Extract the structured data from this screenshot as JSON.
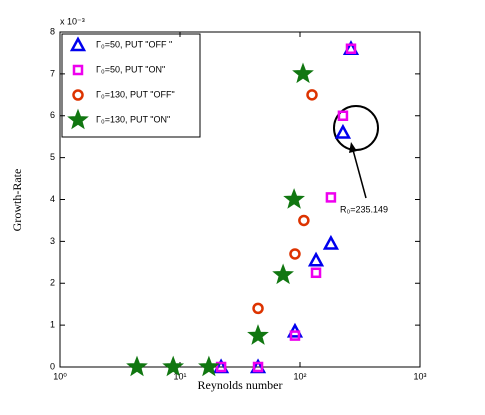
{
  "chart_data": {
    "type": "scatter",
    "xlabel": "Reynolds number",
    "ylabel": "Growth-Rate",
    "y_scale_label": "x 10⁻³",
    "log_x": true,
    "xlim": [
      1,
      1000
    ],
    "xticks": [
      {
        "value": 1,
        "label": "10⁰"
      },
      {
        "value": 10,
        "label": "10¹"
      },
      {
        "value": 100,
        "label": "10²"
      },
      {
        "value": 1000,
        "label": "10³"
      }
    ],
    "ylim": [
      0,
      8
    ],
    "yticks": [
      0,
      1,
      2,
      3,
      4,
      5,
      6,
      7,
      8
    ],
    "legend": "upper left",
    "annotation": "R₀=235.149",
    "series": [
      {
        "name": "Γ₀=50,  PUT \"OFF \"",
        "color": "#0000ee",
        "marker": "triangle",
        "x": [
          22,
          44.7,
          90.8,
          136,
          181,
          228,
          266
        ],
        "values": [
          0,
          0,
          0.85,
          2.55,
          2.95,
          5.6,
          7.6
        ]
      },
      {
        "name": "Γ₀=50, PUT \"ON\"",
        "color": "#ee00ee",
        "marker": "square",
        "x": [
          22,
          44.7,
          90.8,
          136,
          181,
          228,
          266
        ],
        "values": [
          0,
          0,
          0.75,
          2.25,
          4.05,
          6.0,
          7.6
        ]
      },
      {
        "name": "Γ₀=130, PUT \"OFF\"",
        "color": "#dd3300",
        "marker": "circle",
        "x": [
          44.7,
          90.8,
          107.7,
          125.9
        ],
        "values": [
          1.4,
          2.7,
          3.5,
          6.5
        ]
      },
      {
        "name": "Γ₀=130, PUT \"ON\"",
        "color": "#117711",
        "marker": "star",
        "x": [
          4.38,
          8.77,
          17.4,
          44.7,
          72.3,
          89.3,
          106
        ],
        "values": [
          0,
          0,
          0,
          0.75,
          2.2,
          4.0,
          7.0
        ]
      }
    ]
  }
}
